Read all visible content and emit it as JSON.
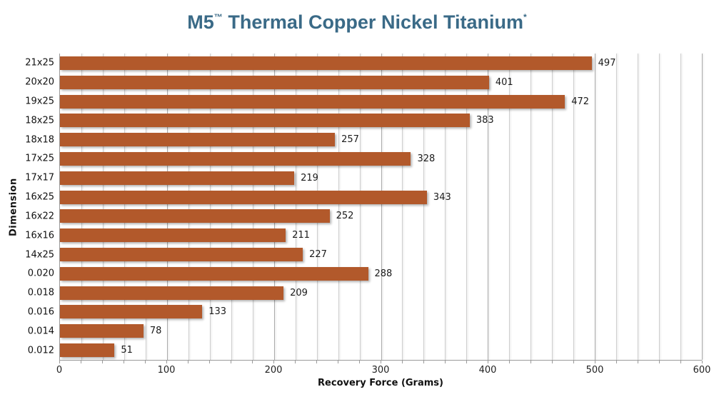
{
  "title": {
    "prefix": "M5",
    "trademark": "™",
    "rest": " Thermal Copper Nickel Titanium",
    "footnote_marker": "*",
    "color": "#3A6A87"
  },
  "chart_data": {
    "type": "bar",
    "orientation": "horizontal",
    "title": "M5™ Thermal Copper Nickel Titanium*",
    "categories": [
      "21x25",
      "20x20",
      "19x25",
      "18x25",
      "18x18",
      "17x25",
      "17x17",
      "16x25",
      "16x22",
      "16x16",
      "14x25",
      "0.020",
      "0.018",
      "0.016",
      "0.014",
      "0.012"
    ],
    "values": [
      497,
      401,
      472,
      383,
      257,
      328,
      219,
      343,
      252,
      211,
      227,
      288,
      209,
      133,
      78,
      51
    ],
    "xlabel": "Recovery Force (Grams)",
    "ylabel": "Dimension",
    "xlim": [
      0,
      600
    ],
    "x_major_tick_step": 100,
    "x_minor_tick_step": 20,
    "x_tick_labels": [
      "0",
      "100",
      "200",
      "300",
      "400",
      "500",
      "600"
    ],
    "grid": "vertical",
    "gridline_minor_color": "#CFCFCF",
    "gridline_major_color": "#ABABAB",
    "axis_line_color": "#9A9A9A",
    "legend": "none",
    "bar_color": "#B2592B",
    "value_labels_shown": true,
    "text_color": "#1A1A1A"
  }
}
